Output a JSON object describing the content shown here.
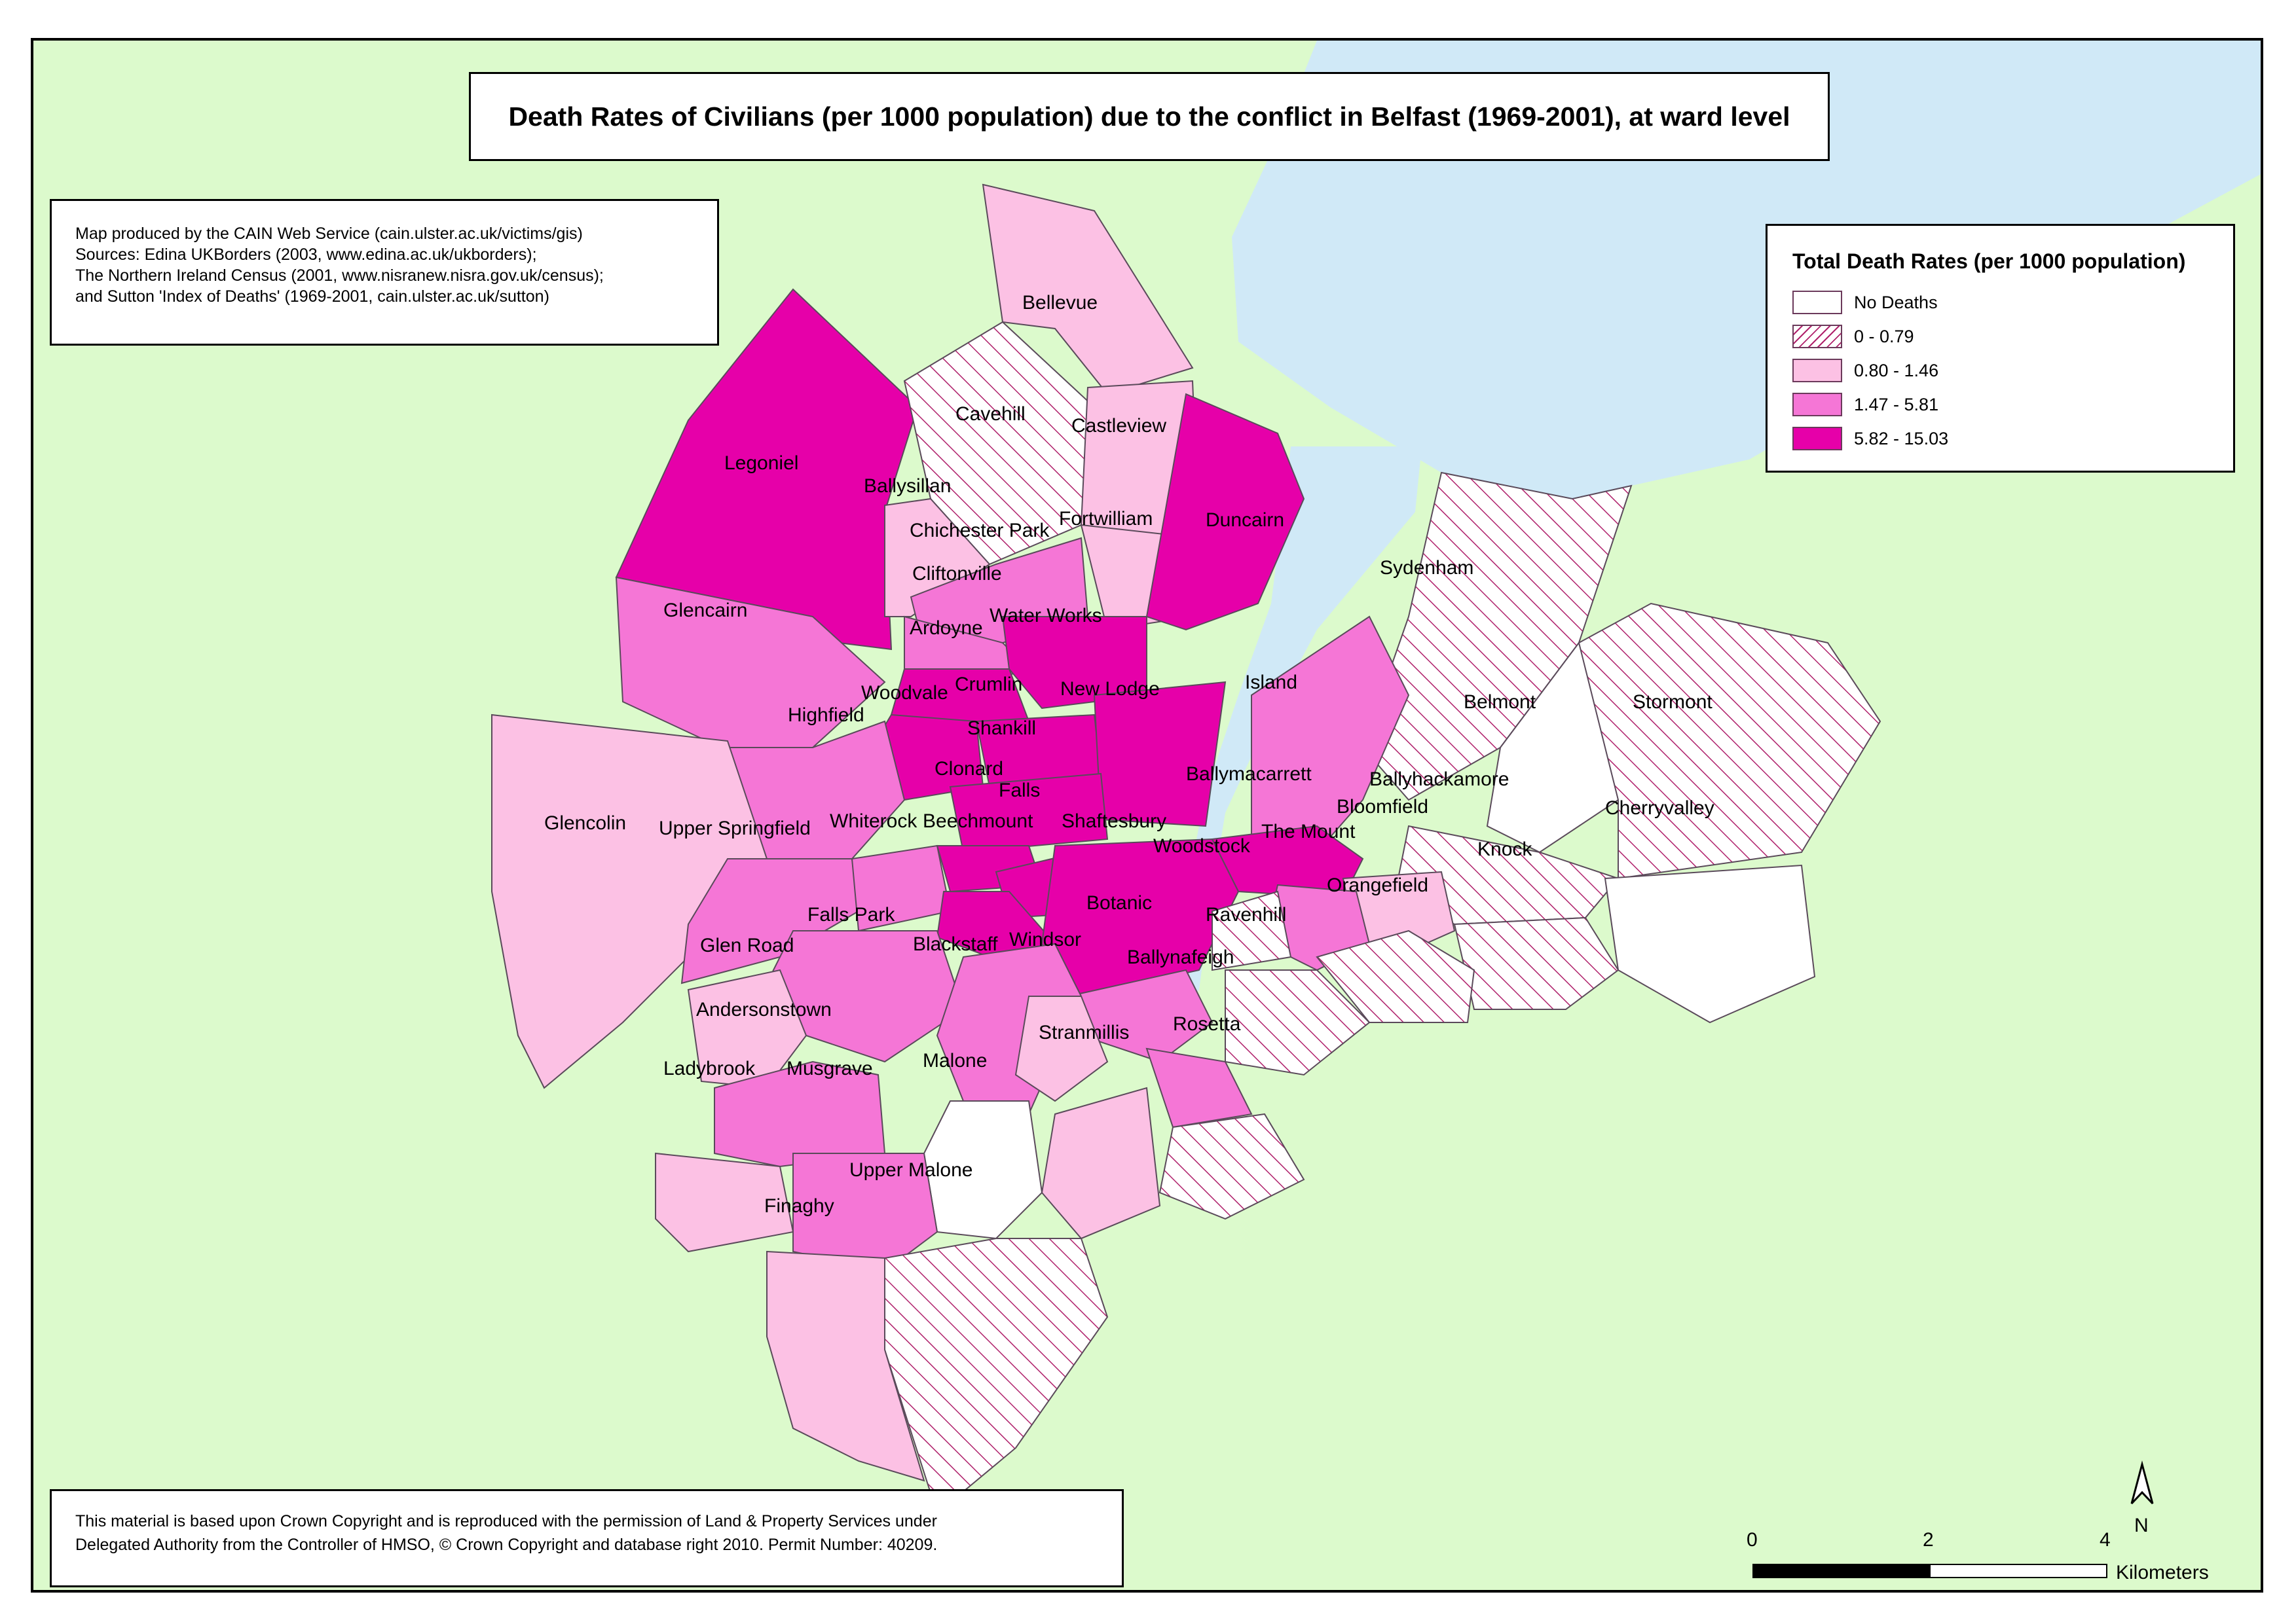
{
  "title": "Death Rates of Civilians (per 1000 population) due to the conflict in Belfast (1969-2001), at ward level",
  "credits": [
    "Map produced by the CAIN Web Service (cain.ulster.ac.uk/victims/gis)",
    "Sources: Edina UKBorders (2003, www.edina.ac.uk/ukborders);",
    "The Northern Ireland Census (2001, www.nisranew.nisra.gov.uk/census);",
    "and Sutton 'Index of Deaths' (1969-2001, cain.ulster.ac.uk/sutton)"
  ],
  "legend": {
    "title": "Total Death Rates (per 1000 population)",
    "classes": [
      {
        "label": "No Deaths",
        "color": "#ffffff",
        "pattern": "none"
      },
      {
        "label": "0 - 0.79",
        "color": "#ffffff",
        "pattern": "hatch"
      },
      {
        "label": "0.80 - 1.46",
        "color": "#fcc1e4",
        "pattern": "none"
      },
      {
        "label": "1.47 - 5.81",
        "color": "#f576d6",
        "pattern": "none"
      },
      {
        "label": "5.82 - 15.03",
        "color": "#e600a9",
        "pattern": "none"
      }
    ]
  },
  "colors": {
    "land": "#dcfacc",
    "water": "#d0e9f7",
    "hatch": "#b0226c",
    "border": "#5a4a5a"
  },
  "wards": [
    {
      "name": "Legoniel",
      "class": 4
    },
    {
      "name": "Bellevue",
      "class": 2
    },
    {
      "name": "Cavehill",
      "class": 1
    },
    {
      "name": "Castleview",
      "class": 2
    },
    {
      "name": "Ballysillan",
      "class": 2
    },
    {
      "name": "Chichester Park",
      "class": 3
    },
    {
      "name": "Fortwilliam",
      "class": 2
    },
    {
      "name": "Duncairn",
      "class": 4
    },
    {
      "name": "Cliftonville",
      "class": 3
    },
    {
      "name": "Glencairn",
      "class": 3
    },
    {
      "name": "Water Works",
      "class": 4
    },
    {
      "name": "Ardoyne",
      "class": 4
    },
    {
      "name": "Sydenham",
      "class": 1
    },
    {
      "name": "Crumlin",
      "class": 4
    },
    {
      "name": "New Lodge",
      "class": 4
    },
    {
      "name": "Woodvale",
      "class": 4
    },
    {
      "name": "Island",
      "class": 3
    },
    {
      "name": "Highfield",
      "class": 3
    },
    {
      "name": "Belmont",
      "class": 0
    },
    {
      "name": "Stormont",
      "class": 1
    },
    {
      "name": "Shankill",
      "class": 4
    },
    {
      "name": "Clonard",
      "class": 4
    },
    {
      "name": "Ballymacarrett",
      "class": 4
    },
    {
      "name": "Falls",
      "class": 4
    },
    {
      "name": "Ballyhackamore",
      "class": 1
    },
    {
      "name": "Bloomfield",
      "class": 2
    },
    {
      "name": "Cherryvalley",
      "class": 0
    },
    {
      "name": "Glencolin",
      "class": 2
    },
    {
      "name": "Upper Springfield",
      "class": 3
    },
    {
      "name": "Whiterock",
      "class": 3
    },
    {
      "name": "Beechmount",
      "class": 4
    },
    {
      "name": "Shaftesbury",
      "class": 4
    },
    {
      "name": "The Mount",
      "class": 3
    },
    {
      "name": "Woodstock",
      "class": 1
    },
    {
      "name": "Knock",
      "class": 1
    },
    {
      "name": "Orangefield",
      "class": 1
    },
    {
      "name": "Falls Park",
      "class": 3
    },
    {
      "name": "Botanic",
      "class": 3
    },
    {
      "name": "Ravenhill",
      "class": 1
    },
    {
      "name": "Glen Road",
      "class": 2
    },
    {
      "name": "Blackstaff",
      "class": 3
    },
    {
      "name": "Windsor",
      "class": 2
    },
    {
      "name": "Ballynafeigh",
      "class": 3
    },
    {
      "name": "Andersonstown",
      "class": 3
    },
    {
      "name": "Rosetta",
      "class": 1
    },
    {
      "name": "Stranmillis",
      "class": 2
    },
    {
      "name": "Malone",
      "class": 0
    },
    {
      "name": "Ladybrook",
      "class": 2
    },
    {
      "name": "Musgrave",
      "class": 3
    },
    {
      "name": "Upper Malone",
      "class": 1
    },
    {
      "name": "Finaghy",
      "class": 2
    }
  ],
  "north_arrow": {
    "label": "N"
  },
  "scalebar": {
    "ticks": [
      "0",
      "2",
      "4"
    ],
    "unit": "Kilometers"
  },
  "copyright": [
    "This material is based upon Crown Copyright and is reproduced with the permission of Land & Property Services under",
    "Delegated Authority from the Controller of HMSO, © Crown Copyright and database right 2010. Permit Number: 40209."
  ]
}
